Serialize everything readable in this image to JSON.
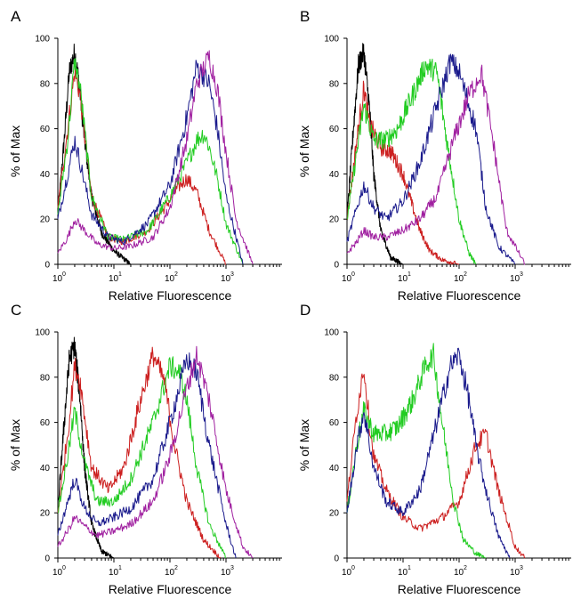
{
  "colors": {
    "black": "#000000",
    "red": "#cc1f1f",
    "green": "#22cc22",
    "blue": "#1a1a8c",
    "magenta": "#a020a0"
  },
  "chart_data": [
    {
      "panel": "A",
      "type": "line",
      "xscale": "log",
      "xlabel": "Relative Fluorescence",
      "ylabel": "% of Max",
      "xlim": [
        1,
        10000
      ],
      "ylim": [
        0,
        100
      ],
      "xticks": [
        "10",
        "10",
        "10",
        "10"
      ],
      "xtick_exponents": [
        "0",
        "1",
        "2",
        "3"
      ],
      "yticks": [
        "0",
        "20",
        "40",
        "60",
        "80",
        "100"
      ],
      "series": [
        {
          "color": "#000000",
          "x": [
            1,
            1.3,
            1.6,
            2.0,
            2.4,
            3.0,
            4.0,
            6.0,
            10,
            20
          ],
          "y": [
            22,
            55,
            85,
            94,
            80,
            55,
            30,
            14,
            6,
            0
          ]
        },
        {
          "color": "#cc1f1f",
          "x": [
            1,
            1.5,
            2.0,
            2.5,
            4,
            8,
            15,
            40,
            80,
            150,
            200,
            300,
            500,
            1000
          ],
          "y": [
            25,
            60,
            85,
            75,
            30,
            12,
            10,
            15,
            25,
            35,
            38,
            32,
            15,
            0
          ]
        },
        {
          "color": "#22cc22",
          "x": [
            1,
            1.5,
            2.0,
            2.5,
            4,
            8,
            15,
            40,
            100,
            200,
            300,
            400,
            500,
            700,
            1000,
            2000
          ],
          "y": [
            22,
            55,
            90,
            78,
            30,
            12,
            11,
            15,
            30,
            45,
            55,
            58,
            52,
            38,
            18,
            0
          ]
        },
        {
          "color": "#1a1a8c",
          "x": [
            1,
            1.5,
            2.0,
            2.5,
            4,
            8,
            15,
            40,
            100,
            200,
            300,
            500,
            700,
            1000,
            2000
          ],
          "y": [
            20,
            40,
            55,
            45,
            22,
            12,
            10,
            18,
            35,
            65,
            88,
            80,
            60,
            30,
            0
          ]
        },
        {
          "color": "#a020a0",
          "x": [
            1,
            1.5,
            2.0,
            3,
            5,
            10,
            20,
            50,
            100,
            200,
            300,
            500,
            700,
            1000,
            1500,
            3000
          ],
          "y": [
            5,
            12,
            20,
            15,
            9,
            7,
            8,
            12,
            25,
            55,
            80,
            92,
            78,
            50,
            20,
            0
          ]
        }
      ]
    },
    {
      "panel": "B",
      "type": "line",
      "xscale": "log",
      "xlabel": "Relative Fluorescence",
      "ylabel": "% of Max",
      "xlim": [
        1,
        10000
      ],
      "ylim": [
        0,
        100
      ],
      "xticks": [
        "10",
        "10",
        "10",
        "10"
      ],
      "xtick_exponents": [
        "0",
        "1",
        "2",
        "3"
      ],
      "yticks": [
        "0",
        "20",
        "40",
        "60",
        "80",
        "100"
      ],
      "series": [
        {
          "color": "#000000",
          "x": [
            1,
            1.3,
            1.6,
            2.0,
            2.5,
            3.0,
            4.0,
            6.0,
            10
          ],
          "y": [
            20,
            60,
            88,
            94,
            70,
            40,
            15,
            3,
            0
          ]
        },
        {
          "color": "#cc1f1f",
          "x": [
            1,
            1.5,
            2.0,
            2.5,
            4,
            6,
            10,
            15,
            20,
            30,
            50,
            100
          ],
          "y": [
            20,
            55,
            78,
            62,
            52,
            50,
            40,
            25,
            15,
            6,
            2,
            0
          ]
        },
        {
          "color": "#22cc22",
          "x": [
            1,
            1.5,
            2.0,
            3,
            5,
            8,
            15,
            25,
            40,
            60,
            100,
            150,
            200
          ],
          "y": [
            20,
            50,
            70,
            55,
            55,
            60,
            75,
            88,
            85,
            55,
            20,
            5,
            0
          ]
        },
        {
          "color": "#1a1a8c",
          "x": [
            1,
            1.5,
            2.0,
            3,
            5,
            10,
            20,
            40,
            70,
            100,
            200,
            300,
            500,
            1000
          ],
          "y": [
            10,
            25,
            35,
            25,
            20,
            28,
            45,
            70,
            90,
            85,
            60,
            25,
            8,
            0
          ]
        },
        {
          "color": "#a020a0",
          "x": [
            1,
            1.5,
            2.0,
            3,
            5,
            10,
            20,
            40,
            80,
            150,
            250,
            400,
            700,
            1500
          ],
          "y": [
            5,
            10,
            15,
            12,
            12,
            15,
            20,
            30,
            55,
            75,
            85,
            55,
            15,
            0
          ]
        }
      ]
    },
    {
      "panel": "C",
      "type": "line",
      "xscale": "log",
      "xlabel": "Relative Fluorescence",
      "ylabel": "% of Max",
      "xlim": [
        1,
        10000
      ],
      "ylim": [
        0,
        100
      ],
      "xticks": [
        "10",
        "10",
        "10",
        "10"
      ],
      "xtick_exponents": [
        "0",
        "1",
        "2",
        "3"
      ],
      "yticks": [
        "0",
        "20",
        "40",
        "60",
        "80",
        "100"
      ],
      "series": [
        {
          "color": "#000000",
          "x": [
            1,
            1.3,
            1.6,
            2.0,
            2.5,
            3.0,
            4.0,
            6.0,
            10
          ],
          "y": [
            22,
            60,
            88,
            94,
            70,
            40,
            15,
            3,
            0
          ]
        },
        {
          "color": "#cc1f1f",
          "x": [
            1,
            1.5,
            2.0,
            2.5,
            4,
            8,
            15,
            30,
            50,
            80,
            120,
            200,
            400,
            800
          ],
          "y": [
            20,
            55,
            85,
            78,
            40,
            30,
            40,
            70,
            90,
            78,
            50,
            25,
            8,
            0
          ]
        },
        {
          "color": "#22cc22",
          "x": [
            1,
            1.5,
            2.0,
            3,
            5,
            10,
            20,
            50,
            100,
            150,
            200,
            300,
            500,
            1000
          ],
          "y": [
            20,
            45,
            65,
            42,
            25,
            25,
            35,
            60,
            85,
            82,
            70,
            40,
            15,
            0
          ]
        },
        {
          "color": "#1a1a8c",
          "x": [
            1,
            1.5,
            2.0,
            3,
            5,
            10,
            20,
            50,
            100,
            200,
            300,
            500,
            1000,
            1500
          ],
          "y": [
            10,
            25,
            35,
            22,
            15,
            18,
            22,
            35,
            60,
            88,
            82,
            50,
            15,
            0
          ]
        },
        {
          "color": "#a020a0",
          "x": [
            1,
            1.5,
            2.0,
            3,
            5,
            10,
            20,
            50,
            100,
            200,
            300,
            500,
            1000,
            2000,
            3000
          ],
          "y": [
            5,
            12,
            18,
            14,
            10,
            12,
            15,
            25,
            45,
            75,
            90,
            70,
            30,
            5,
            0
          ]
        }
      ]
    },
    {
      "panel": "D",
      "type": "line",
      "xscale": "log",
      "xlabel": "Relative Fluorescence",
      "ylabel": "% of Max",
      "xlim": [
        1,
        10000
      ],
      "ylim": [
        0,
        100
      ],
      "xticks": [
        "10",
        "10",
        "10",
        "10"
      ],
      "xtick_exponents": [
        "0",
        "1",
        "2",
        "3"
      ],
      "yticks": [
        "0",
        "20",
        "40",
        "60",
        "80",
        "100"
      ],
      "series": [
        {
          "color": "#cc1f1f",
          "x": [
            1,
            1.5,
            2.0,
            2.5,
            3,
            5,
            10,
            20,
            50,
            100,
            200,
            300,
            500,
            1000,
            1500
          ],
          "y": [
            25,
            65,
            85,
            60,
            45,
            30,
            18,
            13,
            18,
            25,
            50,
            55,
            30,
            5,
            0
          ]
        },
        {
          "color": "#22cc22",
          "x": [
            1,
            1.5,
            2.0,
            3,
            5,
            8,
            15,
            25,
            35,
            50,
            80,
            120,
            200,
            300
          ],
          "y": [
            20,
            50,
            65,
            55,
            55,
            58,
            70,
            85,
            90,
            60,
            25,
            8,
            2,
            0
          ]
        },
        {
          "color": "#1a1a8c",
          "x": [
            1,
            1.5,
            2.0,
            3,
            5,
            10,
            20,
            40,
            70,
            100,
            150,
            200,
            300,
            500,
            800
          ],
          "y": [
            20,
            50,
            65,
            40,
            25,
            20,
            30,
            60,
            85,
            90,
            70,
            50,
            30,
            10,
            0
          ]
        }
      ]
    }
  ]
}
